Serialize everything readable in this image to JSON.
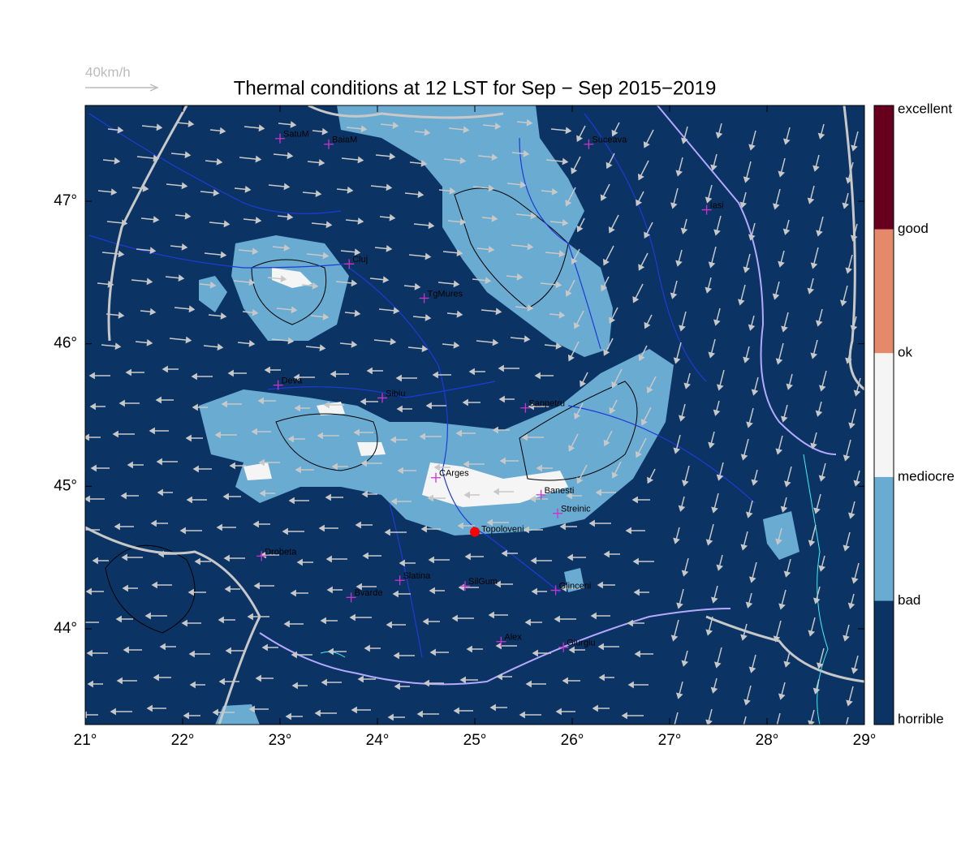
{
  "chart_data": {
    "type": "map",
    "title": "Thermal conditions at 12 LST for Sep − Sep  2015−2019",
    "wind_scale_label": "40km/h",
    "xlim": [
      21,
      29
    ],
    "ylim": [
      43.328,
      47.672
    ],
    "xticks": [
      {
        "value": 21,
        "label": "21°"
      },
      {
        "value": 22,
        "label": "22°"
      },
      {
        "value": 23,
        "label": "23°"
      },
      {
        "value": 24,
        "label": "24°"
      },
      {
        "value": 25,
        "label": "25°"
      },
      {
        "value": 26,
        "label": "26°"
      },
      {
        "value": 27,
        "label": "27°"
      },
      {
        "value": 28,
        "label": "28°"
      },
      {
        "value": 29,
        "label": "29°"
      }
    ],
    "yticks": [
      {
        "value": 44,
        "label": "44°"
      },
      {
        "value": 45,
        "label": "45°"
      },
      {
        "value": 46,
        "label": "46°"
      },
      {
        "value": 47,
        "label": "47°"
      }
    ],
    "colorbar": {
      "labels": [
        "horrible",
        "bad",
        "mediocre",
        "ok",
        "good",
        "excellent"
      ],
      "colors": [
        "#0b3464",
        "#6aabd2",
        "#f5f5f5",
        "#e48a6a",
        "#67001f"
      ]
    },
    "cities": [
      {
        "name": "SatuM",
        "lon": 23.0,
        "lat": 47.44
      },
      {
        "name": "BaiaM",
        "lon": 23.5,
        "lat": 47.4
      },
      {
        "name": "Suceava",
        "lon": 26.17,
        "lat": 47.4
      },
      {
        "name": "Iasi",
        "lon": 27.38,
        "lat": 46.94
      },
      {
        "name": "Cluj",
        "lon": 23.71,
        "lat": 46.56
      },
      {
        "name": "TgMures",
        "lon": 24.48,
        "lat": 46.32
      },
      {
        "name": "Deva",
        "lon": 22.98,
        "lat": 45.71
      },
      {
        "name": "Sibiu",
        "lon": 24.05,
        "lat": 45.62
      },
      {
        "name": "Sanpetru",
        "lon": 25.52,
        "lat": 45.55
      },
      {
        "name": "CArges",
        "lon": 24.6,
        "lat": 45.06
      },
      {
        "name": "Banesti",
        "lon": 25.68,
        "lat": 44.94
      },
      {
        "name": "Streinic",
        "lon": 25.85,
        "lat": 44.81
      },
      {
        "name": "Drobeta",
        "lon": 22.81,
        "lat": 44.51
      },
      {
        "name": "Slatina",
        "lon": 24.23,
        "lat": 44.34
      },
      {
        "name": "SilGum",
        "lon": 24.9,
        "lat": 44.3
      },
      {
        "name": "Glinceni",
        "lon": 25.83,
        "lat": 44.27
      },
      {
        "name": "Bvarde",
        "lon": 23.73,
        "lat": 44.22
      },
      {
        "name": "Alex",
        "lon": 25.27,
        "lat": 43.91
      },
      {
        "name": "Giurgiu",
        "lon": 25.91,
        "lat": 43.87
      }
    ],
    "site": {
      "name": "Topoloveni",
      "lon": 25.0,
      "lat": 44.68,
      "color": "#ff0000"
    },
    "city_color": "#cc33cc"
  }
}
